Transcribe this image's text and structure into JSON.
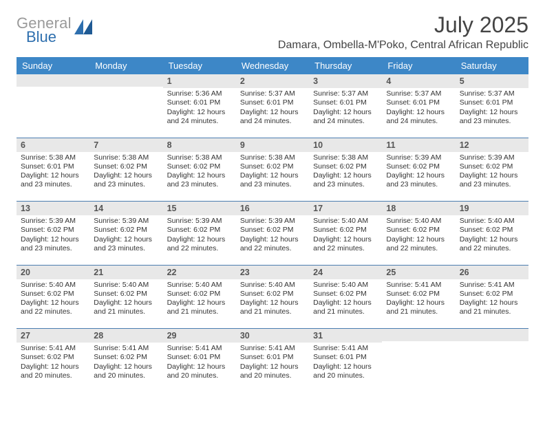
{
  "logo": {
    "line1": "General",
    "line2": "Blue",
    "line1_color": "#9a9a9a",
    "line2_color": "#2e6fae",
    "mark_color": "#2e6fae",
    "fontsize": 22
  },
  "header": {
    "title": "July 2025",
    "location": "Damara, Ombella-M'Poko, Central African Republic",
    "title_fontsize": 32,
    "location_fontsize": 16,
    "title_color": "#444444"
  },
  "calendar": {
    "type": "table",
    "header_bg": "#3d87c7",
    "header_text_color": "#ffffff",
    "divider_color": "#4a7db0",
    "daynum_bg": "#e8e8e8",
    "daynum_color": "#555555",
    "body_text_color": "#333333",
    "body_fontsize": 10.5,
    "header_fontsize": 13,
    "daynum_fontsize": 12.5,
    "weekdays": [
      "Sunday",
      "Monday",
      "Tuesday",
      "Wednesday",
      "Thursday",
      "Friday",
      "Saturday"
    ],
    "weeks": [
      [
        null,
        null,
        {
          "num": "1",
          "sunrise": "Sunrise: 5:36 AM",
          "sunset": "Sunset: 6:01 PM",
          "daylight": "Daylight: 12 hours and 24 minutes."
        },
        {
          "num": "2",
          "sunrise": "Sunrise: 5:37 AM",
          "sunset": "Sunset: 6:01 PM",
          "daylight": "Daylight: 12 hours and 24 minutes."
        },
        {
          "num": "3",
          "sunrise": "Sunrise: 5:37 AM",
          "sunset": "Sunset: 6:01 PM",
          "daylight": "Daylight: 12 hours and 24 minutes."
        },
        {
          "num": "4",
          "sunrise": "Sunrise: 5:37 AM",
          "sunset": "Sunset: 6:01 PM",
          "daylight": "Daylight: 12 hours and 24 minutes."
        },
        {
          "num": "5",
          "sunrise": "Sunrise: 5:37 AM",
          "sunset": "Sunset: 6:01 PM",
          "daylight": "Daylight: 12 hours and 23 minutes."
        }
      ],
      [
        {
          "num": "6",
          "sunrise": "Sunrise: 5:38 AM",
          "sunset": "Sunset: 6:01 PM",
          "daylight": "Daylight: 12 hours and 23 minutes."
        },
        {
          "num": "7",
          "sunrise": "Sunrise: 5:38 AM",
          "sunset": "Sunset: 6:02 PM",
          "daylight": "Daylight: 12 hours and 23 minutes."
        },
        {
          "num": "8",
          "sunrise": "Sunrise: 5:38 AM",
          "sunset": "Sunset: 6:02 PM",
          "daylight": "Daylight: 12 hours and 23 minutes."
        },
        {
          "num": "9",
          "sunrise": "Sunrise: 5:38 AM",
          "sunset": "Sunset: 6:02 PM",
          "daylight": "Daylight: 12 hours and 23 minutes."
        },
        {
          "num": "10",
          "sunrise": "Sunrise: 5:38 AM",
          "sunset": "Sunset: 6:02 PM",
          "daylight": "Daylight: 12 hours and 23 minutes."
        },
        {
          "num": "11",
          "sunrise": "Sunrise: 5:39 AM",
          "sunset": "Sunset: 6:02 PM",
          "daylight": "Daylight: 12 hours and 23 minutes."
        },
        {
          "num": "12",
          "sunrise": "Sunrise: 5:39 AM",
          "sunset": "Sunset: 6:02 PM",
          "daylight": "Daylight: 12 hours and 23 minutes."
        }
      ],
      [
        {
          "num": "13",
          "sunrise": "Sunrise: 5:39 AM",
          "sunset": "Sunset: 6:02 PM",
          "daylight": "Daylight: 12 hours and 23 minutes."
        },
        {
          "num": "14",
          "sunrise": "Sunrise: 5:39 AM",
          "sunset": "Sunset: 6:02 PM",
          "daylight": "Daylight: 12 hours and 23 minutes."
        },
        {
          "num": "15",
          "sunrise": "Sunrise: 5:39 AM",
          "sunset": "Sunset: 6:02 PM",
          "daylight": "Daylight: 12 hours and 22 minutes."
        },
        {
          "num": "16",
          "sunrise": "Sunrise: 5:39 AM",
          "sunset": "Sunset: 6:02 PM",
          "daylight": "Daylight: 12 hours and 22 minutes."
        },
        {
          "num": "17",
          "sunrise": "Sunrise: 5:40 AM",
          "sunset": "Sunset: 6:02 PM",
          "daylight": "Daylight: 12 hours and 22 minutes."
        },
        {
          "num": "18",
          "sunrise": "Sunrise: 5:40 AM",
          "sunset": "Sunset: 6:02 PM",
          "daylight": "Daylight: 12 hours and 22 minutes."
        },
        {
          "num": "19",
          "sunrise": "Sunrise: 5:40 AM",
          "sunset": "Sunset: 6:02 PM",
          "daylight": "Daylight: 12 hours and 22 minutes."
        }
      ],
      [
        {
          "num": "20",
          "sunrise": "Sunrise: 5:40 AM",
          "sunset": "Sunset: 6:02 PM",
          "daylight": "Daylight: 12 hours and 22 minutes."
        },
        {
          "num": "21",
          "sunrise": "Sunrise: 5:40 AM",
          "sunset": "Sunset: 6:02 PM",
          "daylight": "Daylight: 12 hours and 21 minutes."
        },
        {
          "num": "22",
          "sunrise": "Sunrise: 5:40 AM",
          "sunset": "Sunset: 6:02 PM",
          "daylight": "Daylight: 12 hours and 21 minutes."
        },
        {
          "num": "23",
          "sunrise": "Sunrise: 5:40 AM",
          "sunset": "Sunset: 6:02 PM",
          "daylight": "Daylight: 12 hours and 21 minutes."
        },
        {
          "num": "24",
          "sunrise": "Sunrise: 5:40 AM",
          "sunset": "Sunset: 6:02 PM",
          "daylight": "Daylight: 12 hours and 21 minutes."
        },
        {
          "num": "25",
          "sunrise": "Sunrise: 5:41 AM",
          "sunset": "Sunset: 6:02 PM",
          "daylight": "Daylight: 12 hours and 21 minutes."
        },
        {
          "num": "26",
          "sunrise": "Sunrise: 5:41 AM",
          "sunset": "Sunset: 6:02 PM",
          "daylight": "Daylight: 12 hours and 21 minutes."
        }
      ],
      [
        {
          "num": "27",
          "sunrise": "Sunrise: 5:41 AM",
          "sunset": "Sunset: 6:02 PM",
          "daylight": "Daylight: 12 hours and 20 minutes."
        },
        {
          "num": "28",
          "sunrise": "Sunrise: 5:41 AM",
          "sunset": "Sunset: 6:02 PM",
          "daylight": "Daylight: 12 hours and 20 minutes."
        },
        {
          "num": "29",
          "sunrise": "Sunrise: 5:41 AM",
          "sunset": "Sunset: 6:01 PM",
          "daylight": "Daylight: 12 hours and 20 minutes."
        },
        {
          "num": "30",
          "sunrise": "Sunrise: 5:41 AM",
          "sunset": "Sunset: 6:01 PM",
          "daylight": "Daylight: 12 hours and 20 minutes."
        },
        {
          "num": "31",
          "sunrise": "Sunrise: 5:41 AM",
          "sunset": "Sunset: 6:01 PM",
          "daylight": "Daylight: 12 hours and 20 minutes."
        },
        null,
        null
      ]
    ]
  }
}
